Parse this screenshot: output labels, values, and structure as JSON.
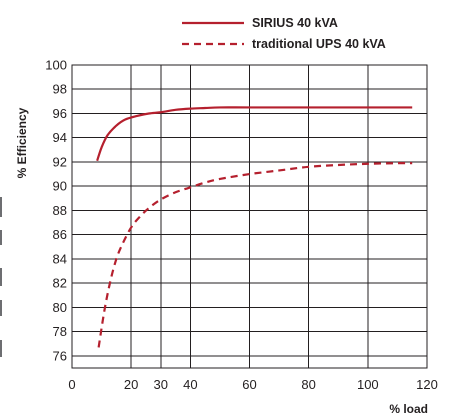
{
  "chart_data": {
    "type": "line",
    "title": "",
    "xlabel": "% load",
    "ylabel": "% Efficiency",
    "xlim": [
      0,
      120
    ],
    "ylim": [
      75,
      100
    ],
    "x_ticks": [
      0,
      20,
      30,
      40,
      60,
      80,
      100,
      120
    ],
    "y_ticks": [
      76,
      78,
      80,
      82,
      84,
      86,
      88,
      90,
      92,
      94,
      96,
      98,
      100
    ],
    "x_gridlines": [
      20,
      30,
      40,
      60,
      80,
      100
    ],
    "y_gridlines": [
      76,
      78,
      80,
      82,
      84,
      86,
      88,
      90,
      92,
      94,
      96,
      98
    ],
    "grid": true,
    "legend_position": "top",
    "series": [
      {
        "name": "SIRIUS 40 kVA",
        "style": "solid",
        "color": "#b5202e",
        "x": [
          8.5,
          10,
          12,
          15,
          18,
          22,
          26,
          30,
          35,
          40,
          45,
          50,
          60,
          80,
          100,
          115
        ],
        "y": [
          92.1,
          93.2,
          94.2,
          95.0,
          95.5,
          95.8,
          96.0,
          96.1,
          96.3,
          96.4,
          96.45,
          96.5,
          96.5,
          96.5,
          96.5,
          96.5
        ]
      },
      {
        "name": "traditional UPS 40 kVA",
        "style": "dashed",
        "color": "#b5202e",
        "x": [
          9,
          11,
          13,
          15,
          17,
          20,
          23,
          26,
          30,
          35,
          40,
          45,
          50,
          60,
          70,
          80,
          90,
          100,
          110,
          115
        ],
        "y": [
          76.7,
          79.8,
          82.2,
          84.0,
          85.2,
          86.6,
          87.5,
          88.2,
          88.9,
          89.5,
          89.9,
          90.3,
          90.6,
          91.0,
          91.3,
          91.6,
          91.75,
          91.85,
          91.9,
          91.9
        ]
      }
    ]
  }
}
